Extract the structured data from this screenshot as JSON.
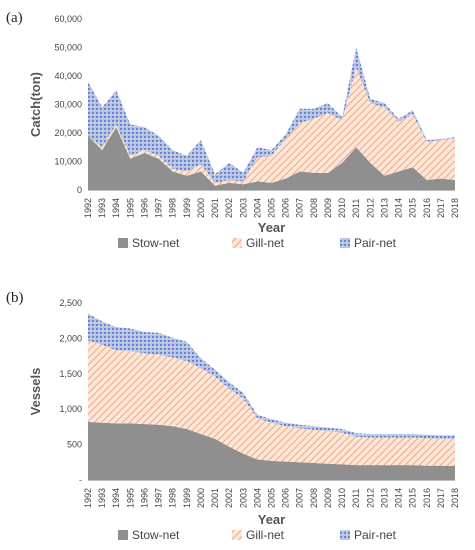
{
  "chart_data": [
    {
      "panel_label": "(a)",
      "type": "area",
      "stacked": true,
      "xlabel": "Year",
      "ylabel": "Catch(ton)",
      "ylim": [
        0,
        60000
      ],
      "yticks": [
        "0",
        "10,000",
        "20,000",
        "30,000",
        "40,000",
        "50,000",
        "60,000"
      ],
      "yticks_values": [
        0,
        10000,
        20000,
        30000,
        40000,
        50000,
        60000
      ],
      "x": [
        1992,
        1993,
        1994,
        1995,
        1996,
        1997,
        1998,
        1999,
        2000,
        2001,
        2002,
        2003,
        2004,
        2005,
        2006,
        2007,
        2008,
        2009,
        2010,
        2011,
        2012,
        2013,
        2014,
        2015,
        2016,
        2017,
        2018
      ],
      "series": [
        {
          "name": "Stow-net",
          "values": [
            19000,
            14000,
            22000,
            11000,
            13000,
            11000,
            6500,
            5000,
            6500,
            1500,
            2500,
            2000,
            3000,
            2500,
            4000,
            6500,
            6000,
            6000,
            9500,
            15000,
            9500,
            5000,
            6500,
            8000,
            3500,
            4000,
            3500
          ]
        },
        {
          "name": "Gill-net",
          "values": [
            0,
            1000,
            1000,
            1000,
            1000,
            1000,
            1000,
            1500,
            2500,
            1000,
            1000,
            1000,
            8500,
            9500,
            14000,
            17000,
            19000,
            21000,
            15000,
            28000,
            21000,
            24000,
            17500,
            18500,
            13500,
            13500,
            14500
          ]
        },
        {
          "name": "Pair-net",
          "values": [
            19000,
            14000,
            12000,
            11000,
            8000,
            7000,
            6500,
            5500,
            8500,
            3000,
            6000,
            3000,
            3500,
            2000,
            1500,
            5000,
            3500,
            3500,
            1000,
            7000,
            1500,
            1500,
            1000,
            1500,
            500,
            500,
            500
          ]
        }
      ],
      "colors": {
        "Stow-net": "#8c8c8c",
        "Gill-net": "#ed9a6a",
        "Pair-net": "#7f97d4"
      },
      "legend_position": "bottom"
    },
    {
      "panel_label": "(b)",
      "type": "area",
      "stacked": true,
      "xlabel": "Year",
      "ylabel": "Vessels",
      "ylim": [
        0,
        2500
      ],
      "yticks": [
        "-",
        "500",
        "1,000",
        "1,500",
        "2,000",
        "2,500"
      ],
      "yticks_values": [
        0,
        500,
        1000,
        1500,
        2000,
        2500
      ],
      "x": [
        1992,
        1993,
        1994,
        1995,
        1996,
        1997,
        1998,
        1999,
        2000,
        2001,
        2002,
        2003,
        2004,
        2005,
        2006,
        2007,
        2008,
        2009,
        2010,
        2011,
        2012,
        2013,
        2014,
        2015,
        2016,
        2017,
        2018
      ],
      "series": [
        {
          "name": "Stow-net",
          "values": [
            820,
            810,
            800,
            800,
            790,
            780,
            760,
            720,
            650,
            580,
            470,
            370,
            290,
            270,
            260,
            250,
            240,
            230,
            220,
            210,
            210,
            210,
            210,
            210,
            200,
            200,
            200
          ]
        },
        {
          "name": "Gill-net",
          "values": [
            1150,
            1100,
            1030,
            1020,
            1000,
            990,
            970,
            960,
            930,
            880,
            820,
            780,
            580,
            540,
            500,
            480,
            470,
            460,
            450,
            400,
            390,
            390,
            390,
            390,
            390,
            380,
            380
          ]
        },
        {
          "name": "Pair-net",
          "values": [
            380,
            330,
            330,
            320,
            300,
            310,
            280,
            270,
            140,
            100,
            90,
            80,
            50,
            50,
            50,
            50,
            50,
            50,
            50,
            50,
            50,
            50,
            50,
            50,
            50,
            50,
            50
          ]
        }
      ],
      "colors": {
        "Stow-net": "#8c8c8c",
        "Gill-net": "#ed9a6a",
        "Pair-net": "#7f97d4"
      },
      "legend_position": "bottom"
    }
  ]
}
